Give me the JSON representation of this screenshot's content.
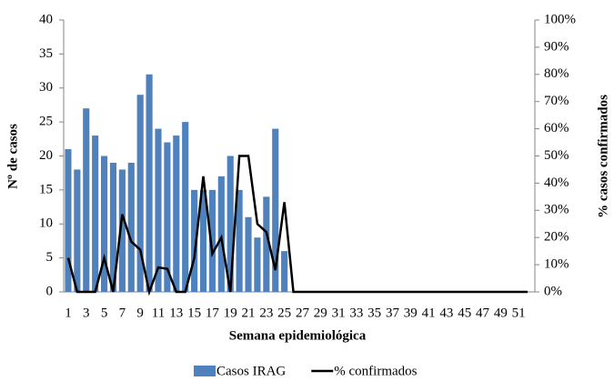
{
  "chart_data": {
    "type": "bar",
    "x_label": "Semana epidemiológica",
    "y_label": "Nº de casos",
    "y2_label": "% casos confirmados",
    "categories": [
      1,
      null,
      3,
      null,
      5,
      null,
      7,
      null,
      9,
      null,
      11,
      null,
      13,
      null,
      15,
      null,
      17,
      null,
      19,
      null,
      21,
      null,
      23,
      null,
      25,
      null,
      27,
      null,
      29,
      null,
      31,
      null,
      33,
      null,
      35,
      null,
      37,
      null,
      39,
      null,
      41,
      null,
      43,
      null,
      45,
      null,
      47,
      null,
      49,
      null,
      51,
      null
    ],
    "series": [
      {
        "name": "Casos IRAG",
        "type": "bar",
        "color": "#4f81bd",
        "values": [
          21,
          18,
          27,
          23,
          20,
          19,
          18,
          19,
          29,
          32,
          24,
          22,
          23,
          25,
          15,
          15,
          15,
          17,
          20,
          15,
          11,
          8,
          14,
          24,
          6,
          0,
          0,
          0,
          0,
          0,
          0,
          0,
          0,
          0,
          0,
          0,
          0,
          0,
          0,
          0,
          0,
          0,
          0,
          0,
          0,
          0,
          0,
          0,
          0,
          0,
          0,
          0
        ]
      },
      {
        "name": "% confirmados",
        "type": "line",
        "axis": "y2",
        "color": "#000000",
        "values": [
          12.5,
          0,
          0,
          0,
          12.5,
          0,
          28.5,
          18.5,
          15.5,
          0,
          9,
          8.5,
          0,
          0,
          12.5,
          42.5,
          14,
          20,
          0,
          50,
          50,
          25,
          22,
          8,
          33,
          0,
          0,
          0,
          0,
          0,
          0,
          0,
          0,
          0,
          0,
          0,
          0,
          0,
          0,
          0,
          0,
          0,
          0,
          0,
          0,
          0,
          0,
          0,
          0,
          0,
          0,
          0
        ]
      }
    ],
    "ylim": [
      0,
      40
    ],
    "yticks": [
      0,
      5,
      10,
      15,
      20,
      25,
      30,
      35,
      40
    ],
    "y2lim": [
      0,
      100
    ],
    "y2ticks": [
      {
        "value": 0,
        "label": "0%"
      },
      {
        "value": 10,
        "label": "10%"
      },
      {
        "value": 20,
        "label": "20%"
      },
      {
        "value": 30,
        "label": "30%"
      },
      {
        "value": 40,
        "label": "40%"
      },
      {
        "value": 50,
        "label": "50%"
      },
      {
        "value": 60,
        "label": "60%"
      },
      {
        "value": 70,
        "label": "70%"
      },
      {
        "value": 80,
        "label": "80%"
      },
      {
        "value": 90,
        "label": "90%"
      },
      {
        "value": 100,
        "label": "100%"
      }
    ],
    "legend": "bottom",
    "grid": false
  }
}
